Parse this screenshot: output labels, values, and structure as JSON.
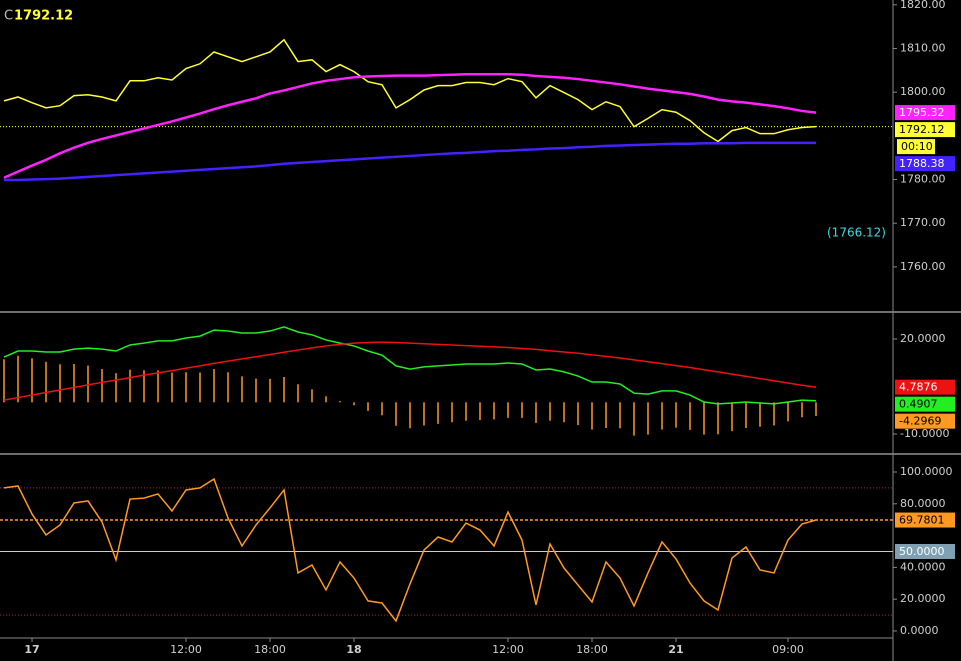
{
  "chart_data": [
    {
      "type": "line",
      "header_label": "C",
      "countdown": "00:10",
      "annotation": "(1766.12)",
      "last_line": true,
      "ylim": [
        1749.9,
        1821.1
      ],
      "yticks": [
        {
          "value": 1820,
          "label": "1820.00"
        },
        {
          "value": 1810,
          "label": "1810.00"
        },
        {
          "value": 1800,
          "label": "1800.00"
        },
        {
          "value": 1780,
          "label": "1780.00"
        },
        {
          "value": 1770,
          "label": "1770.00"
        },
        {
          "value": 1760,
          "label": "1760.00"
        }
      ],
      "series": [
        {
          "color": "#ffff33",
          "values": [
            1798.0,
            1798.9,
            1797.6,
            1796.4,
            1796.9,
            1799.2,
            1799.4,
            1798.9,
            1798.0,
            1802.6,
            1802.6,
            1803.3,
            1802.8,
            1805.4,
            1806.5,
            1809.2,
            1808.1,
            1807.0,
            1808.1,
            1809.2,
            1812.0,
            1807.0,
            1807.4,
            1804.7,
            1806.3,
            1804.7,
            1802.4,
            1801.7,
            1796.4,
            1798.3,
            1800.5,
            1801.5,
            1801.5,
            1802.2,
            1802.2,
            1801.7,
            1803.1,
            1802.4,
            1798.7,
            1801.5,
            1799.9,
            1798.3,
            1796.0,
            1797.8,
            1796.7,
            1792.1,
            1794.0,
            1796.0,
            1795.4,
            1793.5,
            1790.7,
            1788.7,
            1791.2,
            1791.9,
            1790.5,
            1790.5,
            1791.4,
            1791.9,
            1792.12
          ]
        },
        {
          "color": "#ff22ff",
          "values": [
            1780.4,
            1781.8,
            1783.2,
            1784.5,
            1786.0,
            1787.3,
            1788.4,
            1789.3,
            1790.1,
            1790.9,
            1791.7,
            1792.5,
            1793.3,
            1794.2,
            1795.1,
            1796.1,
            1797.0,
            1797.8,
            1798.6,
            1799.7,
            1800.4,
            1801.2,
            1802.0,
            1802.6,
            1803.0,
            1803.4,
            1803.6,
            1803.7,
            1803.8,
            1803.8,
            1803.8,
            1803.9,
            1804.0,
            1804.1,
            1804.1,
            1804.1,
            1804.1,
            1804.0,
            1803.7,
            1803.5,
            1803.3,
            1803.0,
            1802.6,
            1802.2,
            1801.8,
            1801.3,
            1800.8,
            1800.4,
            1800.0,
            1799.6,
            1799.0,
            1798.3,
            1797.9,
            1797.6,
            1797.2,
            1796.8,
            1796.3,
            1795.7,
            1795.32
          ]
        },
        {
          "color": "#4422ff",
          "values": [
            1779.9,
            1779.9,
            1780.0,
            1780.1,
            1780.2,
            1780.4,
            1780.6,
            1780.8,
            1781.0,
            1781.2,
            1781.4,
            1781.6,
            1781.8,
            1782.0,
            1782.2,
            1782.4,
            1782.6,
            1782.8,
            1783.0,
            1783.3,
            1783.6,
            1783.8,
            1784.0,
            1784.2,
            1784.4,
            1784.6,
            1784.8,
            1785.0,
            1785.2,
            1785.4,
            1785.6,
            1785.8,
            1786.0,
            1786.1,
            1786.3,
            1786.5,
            1786.6,
            1786.8,
            1786.9,
            1787.1,
            1787.2,
            1787.4,
            1787.5,
            1787.7,
            1787.8,
            1787.9,
            1788.0,
            1788.1,
            1788.2,
            1788.2,
            1788.3,
            1788.3,
            1788.3,
            1788.4,
            1788.4,
            1788.4,
            1788.4,
            1788.4,
            1788.38
          ]
        }
      ]
    },
    {
      "type": "macd",
      "ylim": [
        -16,
        28.2
      ],
      "yticks": [
        {
          "value": 20,
          "label": "20.0000"
        },
        {
          "value": -10,
          "label": "-10.0000"
        }
      ],
      "histogram": {
        "color": "#ff9922",
        "values": [
          13.6,
          14.7,
          13.9,
          12.8,
          12.0,
          12.1,
          11.6,
          10.5,
          9.2,
          10.3,
          10.1,
          10.1,
          9.4,
          9.5,
          9.4,
          10.5,
          9.5,
          8.2,
          7.5,
          7.4,
          8.0,
          5.7,
          4.1,
          1.9,
          0.4,
          -0.9,
          -2.7,
          -4.1,
          -7.4,
          -8.2,
          -7.3,
          -6.8,
          -6.3,
          -5.8,
          -5.6,
          -5.4,
          -4.9,
          -4.9,
          -6.5,
          -5.8,
          -6.3,
          -7.2,
          -8.6,
          -8.1,
          -8.2,
          -10.5,
          -10.2,
          -8.6,
          -8.0,
          -8.7,
          -10.2,
          -10.1,
          -9.1,
          -8.1,
          -7.7,
          -7.3,
          -6.0,
          -4.7,
          -4.2969
        ]
      },
      "series": [
        {
          "color": "#22ee22",
          "values": [
            14.3,
            16.2,
            16.2,
            15.9,
            15.9,
            16.8,
            17.1,
            16.8,
            16.2,
            18.1,
            18.7,
            19.4,
            19.4,
            20.3,
            20.9,
            22.8,
            22.5,
            21.9,
            21.9,
            22.5,
            23.8,
            22.2,
            21.3,
            19.7,
            18.7,
            17.8,
            16.2,
            14.9,
            11.5,
            10.5,
            11.2,
            11.5,
            11.8,
            12.1,
            12.1,
            12.1,
            12.4,
            12.1,
            10.2,
            10.5,
            9.6,
            8.3,
            6.4,
            6.4,
            5.8,
            2.9,
            2.6,
            3.6,
            3.6,
            2.3,
            0.1,
            -0.5,
            -0.2,
            0.1,
            -0.2,
            -0.5,
            0.1,
            0.7,
            0.4907
          ]
        },
        {
          "color": "#ee1111",
          "values": [
            0.7,
            1.5,
            2.3,
            3.1,
            3.9,
            4.7,
            5.5,
            6.3,
            7.0,
            7.8,
            8.6,
            9.3,
            10.0,
            10.8,
            11.5,
            12.3,
            13.0,
            13.7,
            14.4,
            15.1,
            15.8,
            16.5,
            17.2,
            17.8,
            18.3,
            18.7,
            18.9,
            19.0,
            18.9,
            18.7,
            18.5,
            18.3,
            18.1,
            17.9,
            17.7,
            17.5,
            17.3,
            17.0,
            16.7,
            16.3,
            15.9,
            15.5,
            15.0,
            14.5,
            14.0,
            13.4,
            12.8,
            12.2,
            11.6,
            11.0,
            10.3,
            9.6,
            8.9,
            8.2,
            7.5,
            6.8,
            6.1,
            5.4,
            4.7876
          ]
        }
      ]
    },
    {
      "type": "line",
      "last_line": true,
      "ylim": [
        -3.8,
        110.7
      ],
      "yticks": [
        {
          "value": 100,
          "label": "100.0000"
        },
        {
          "value": 80,
          "label": "80.0000"
        },
        {
          "value": 40,
          "label": "40.0000"
        },
        {
          "value": 20,
          "label": "20.0000"
        },
        {
          "value": 0,
          "label": "0.0000"
        }
      ],
      "levels": [
        {
          "value": 50,
          "label": "50.0000"
        }
      ],
      "bands": [
        10,
        90
      ],
      "series": [
        {
          "color": "#ff9922",
          "values": [
            90,
            91.2,
            73.6,
            60.4,
            66.7,
            80.5,
            81.8,
            68.6,
            44.7,
            83,
            83.6,
            86.2,
            75.5,
            88.7,
            90,
            95.6,
            71.1,
            53.5,
            66.7,
            77.4,
            88.7,
            36.5,
            41.5,
            25.8,
            43.4,
            33.3,
            18.9,
            17.6,
            6.3,
            29.6,
            50.9,
            59.1,
            56,
            67.9,
            63.5,
            53.5,
            74.8,
            57.2,
            16.4,
            54.7,
            39.6,
            28.9,
            18.2,
            43.4,
            33.3,
            15.7,
            36.5,
            56,
            45.3,
            30.2,
            18.9,
            13.2,
            45.9,
            52.8,
            38.4,
            36.5,
            57.2,
            67.3,
            69.7801
          ]
        }
      ],
      "categories": [
        null,
        null,
        "17",
        null,
        null,
        null,
        null,
        null,
        null,
        null,
        null,
        null,
        null,
        "12:00",
        null,
        null,
        null,
        null,
        null,
        "18:00",
        null,
        null,
        null,
        null,
        null,
        "18",
        null,
        null,
        null,
        null,
        null,
        null,
        null,
        null,
        null,
        null,
        "12:00",
        null,
        null,
        null,
        null,
        null,
        "18:00",
        null,
        null,
        null,
        null,
        null,
        "21",
        null,
        null,
        null,
        null,
        null,
        null,
        null,
        "09:00",
        null,
        null
      ]
    }
  ]
}
